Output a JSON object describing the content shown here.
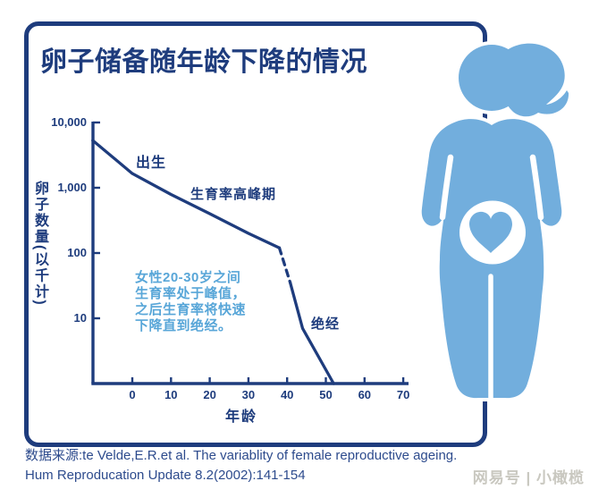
{
  "title": "卵子储备随年龄下降的情况",
  "chart_data": {
    "type": "line",
    "title": "卵子储备随年龄下降的情况",
    "xlabel": "年龄",
    "ylabel": "卵子数量(以千计)",
    "y_scale": "log",
    "xlim": [
      -10.2,
      71
    ],
    "ylim": [
      1,
      10000
    ],
    "x_ticks": [
      "0",
      "10",
      "20",
      "30",
      "40",
      "50",
      "60",
      "70"
    ],
    "y_ticks": [
      "10,000",
      "1,000",
      "100",
      "10"
    ],
    "grid": false,
    "legend": "none",
    "series": [
      {
        "name": "ovarian-reserve-prebirth-to-38",
        "style": "solid",
        "points": [
          [
            -10.2,
            5300
          ],
          [
            0,
            1650
          ],
          [
            10,
            790
          ],
          [
            20,
            400
          ],
          [
            30,
            200
          ],
          [
            38,
            120
          ]
        ]
      },
      {
        "name": "ovarian-reserve-38-to-41-projected",
        "style": "dashed",
        "points": [
          [
            38,
            120
          ],
          [
            40.8,
            35
          ]
        ]
      },
      {
        "name": "ovarian-reserve-41-to-menopause",
        "style": "solid",
        "points": [
          [
            40.8,
            35
          ],
          [
            44,
            7
          ],
          [
            52,
            1
          ]
        ]
      }
    ],
    "annotations": [
      {
        "text": "出生",
        "x": 2,
        "y": 2500
      },
      {
        "text": "生育率高峰期",
        "x": 18,
        "y": 900
      },
      {
        "text": "绝经",
        "x": 47,
        "y": 9
      }
    ]
  },
  "note": {
    "lines": [
      "女性20-30岁之间",
      "生育率处于峰值，",
      "之后生育率将快速",
      "下降直到绝经。"
    ]
  },
  "source": {
    "line1": "数据来源:te Velde,E.R.et al. The variablity of female reproductive ageing.",
    "line2": "Hum Reproducation Update 8.2(2002):141-154"
  },
  "watermark": "网易号 | 小橄榄",
  "figure": {
    "name": "pregnant-woman-with-heart-in-belly"
  },
  "colors": {
    "navy": "#1e3c7d",
    "figure_blue": "#72aedd",
    "note_blue": "#58a6d8",
    "source_navy": "#2d4b8d",
    "watermark_gray": "#c9c8c0",
    "background": "#ffffff"
  }
}
